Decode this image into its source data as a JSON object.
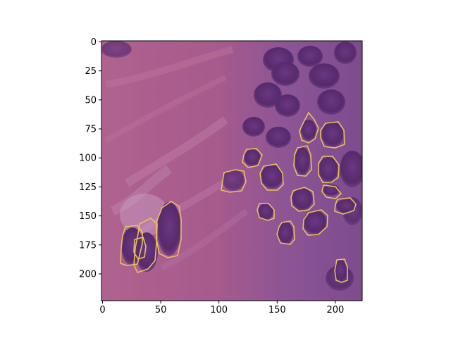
{
  "figure": {
    "x_axis": {
      "ticks": [
        0,
        50,
        100,
        150,
        200
      ],
      "range": [
        0,
        224
      ]
    },
    "y_axis": {
      "ticks": [
        0,
        25,
        50,
        75,
        100,
        125,
        150,
        175,
        200
      ],
      "range": [
        0,
        224
      ],
      "inverted": true
    }
  },
  "image": {
    "description_kind": "histology microscopy patch (H&E stained tissue) with nuclei segmentation outlines",
    "colors": {
      "stroma_pink": "#b3628f",
      "nucleus_purple": "#5d2d74",
      "outline_yellow": "#e7c15a"
    }
  }
}
